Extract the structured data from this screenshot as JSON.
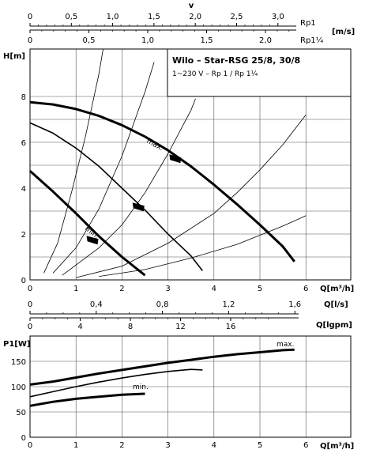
{
  "chart_data": [
    {
      "type": "line",
      "title": "Wilo – Star-RSG 25/8, 30/8",
      "subtitle": "1~230 V – Rp 1 / Rp 1¼",
      "xlabel": "Q[m³/h]",
      "ylabel": "H[m]",
      "xlim": [
        0,
        6.0
      ],
      "ylim": [
        0,
        8.8
      ],
      "x_ticks": [
        "0",
        "1",
        "2",
        "3",
        "4",
        "5",
        "6"
      ],
      "y_ticks": [
        "0",
        "2",
        "4",
        "6",
        "8"
      ],
      "grid": true,
      "series": [
        {
          "name": "max.",
          "x": [
            0,
            0.5,
            1.0,
            1.5,
            2.0,
            2.5,
            3.0,
            3.5,
            4.0,
            4.5,
            5.0,
            5.5,
            5.75
          ],
          "y": [
            7.75,
            7.65,
            7.45,
            7.15,
            6.75,
            6.25,
            5.65,
            4.95,
            4.15,
            3.3,
            2.4,
            1.45,
            0.8
          ]
        },
        {
          "name": "",
          "x": [
            0,
            0.5,
            1.0,
            1.5,
            2.0,
            2.5,
            3.0,
            3.5,
            3.75
          ],
          "y": [
            6.85,
            6.4,
            5.75,
            4.95,
            4.0,
            3.05,
            2.0,
            1.05,
            0.4
          ]
        },
        {
          "name": "min.",
          "x": [
            0,
            0.5,
            1.0,
            1.5,
            2.0,
            2.5
          ],
          "y": [
            4.75,
            3.85,
            2.9,
            1.9,
            1.0,
            0.2
          ]
        }
      ],
      "system_curves": [
        {
          "x": [
            0.3,
            0.6,
            0.9,
            1.2,
            1.5,
            1.75
          ],
          "y": [
            0.3,
            1.6,
            3.8,
            6.2,
            9.0,
            12
          ]
        },
        {
          "x": [
            0.5,
            1.0,
            1.5,
            2.0,
            2.5,
            2.7
          ],
          "y": [
            0.3,
            1.4,
            3.1,
            5.4,
            8.2,
            9.5
          ]
        },
        {
          "x": [
            0.7,
            1.5,
            2.0,
            2.5,
            3.0,
            3.5,
            3.6
          ],
          "y": [
            0.2,
            1.4,
            2.4,
            3.8,
            5.5,
            7.4,
            7.9
          ]
        },
        {
          "x": [
            1.0,
            2.0,
            3.0,
            4.0,
            4.5,
            5.0,
            5.5,
            6.0
          ],
          "y": [
            0.1,
            0.6,
            1.6,
            2.9,
            3.8,
            4.8,
            5.9,
            7.2
          ]
        },
        {
          "x": [
            1.5,
            2.5,
            3.5,
            4.5,
            5.5,
            6.0
          ],
          "y": [
            0.15,
            0.45,
            0.95,
            1.55,
            2.35,
            2.8
          ]
        }
      ],
      "operating_markers": [
        {
          "x": 3.15,
          "y": 5.3
        },
        {
          "x": 2.35,
          "y": 3.2
        },
        {
          "x": 1.35,
          "y": 1.75
        }
      ]
    },
    {
      "type": "line",
      "xlabel": "Q[m³/h]",
      "ylabel": "P1[W]",
      "xlim": [
        0,
        6.0
      ],
      "ylim": [
        0,
        175
      ],
      "x_ticks": [
        "0",
        "1",
        "2",
        "3",
        "4",
        "5",
        "6"
      ],
      "y_ticks": [
        "0",
        "50",
        "100",
        "150"
      ],
      "grid": true,
      "series": [
        {
          "name": "max.",
          "x": [
            0,
            0.5,
            1,
            1.5,
            2,
            2.5,
            3,
            3.5,
            4,
            4.5,
            5,
            5.5,
            5.75
          ],
          "y": [
            104,
            110,
            118,
            126,
            133,
            140,
            147,
            153,
            159,
            164,
            168,
            172,
            173
          ]
        },
        {
          "name": "",
          "x": [
            0,
            0.5,
            1,
            1.5,
            2,
            2.5,
            3,
            3.5,
            3.75
          ],
          "y": [
            80,
            90,
            100,
            109,
            117,
            124,
            130,
            134,
            133
          ]
        },
        {
          "name": "min.",
          "x": [
            0,
            0.5,
            1,
            1.5,
            2,
            2.5
          ],
          "y": [
            62,
            70,
            76,
            80,
            84,
            86
          ]
        }
      ]
    },
    {
      "type": "axis",
      "label": "v",
      "ticks": [
        "0",
        "0,5",
        "1,0",
        "1,5",
        "2,0",
        "2,5",
        "3,0"
      ]
    },
    {
      "type": "axis",
      "label": "Rp1",
      "unit": "[m/s]",
      "ticks": [
        "0",
        "0,5",
        "1,0",
        "1,5",
        "2,0"
      ],
      "label2": "Rp1¼"
    },
    {
      "type": "axis",
      "label": "Q[l/s]",
      "ticks": [
        "0",
        "0,4",
        "0,8",
        "1,2",
        "1,6"
      ]
    },
    {
      "type": "axis",
      "label": "Q[lgpm]",
      "ticks": [
        "0",
        "4",
        "8",
        "12",
        "16"
      ]
    }
  ]
}
